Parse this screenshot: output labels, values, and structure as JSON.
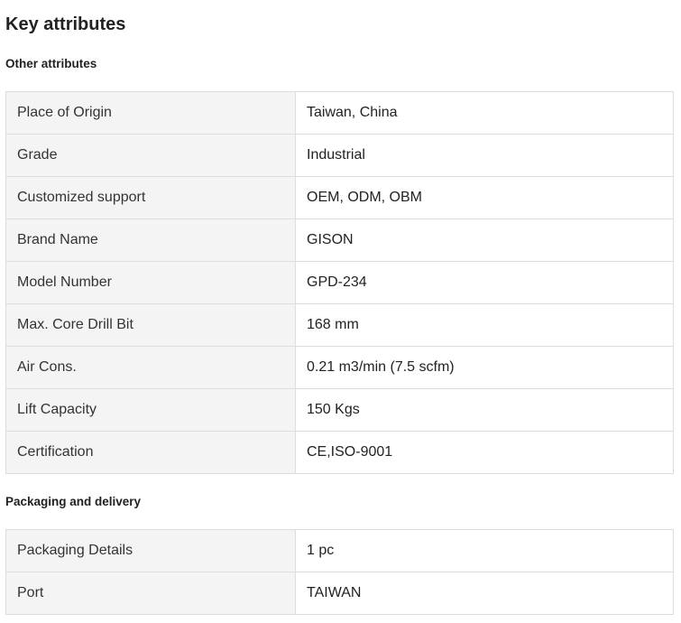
{
  "title": "Key attributes",
  "other_attributes": {
    "heading": "Other attributes",
    "rows": [
      {
        "label": "Place of Origin",
        "value": "Taiwan, China"
      },
      {
        "label": "Grade",
        "value": "Industrial"
      },
      {
        "label": "Customized support",
        "value": "OEM, ODM, OBM"
      },
      {
        "label": "Brand Name",
        "value": "GISON"
      },
      {
        "label": "Model Number",
        "value": "GPD-234"
      },
      {
        "label": "Max. Core Drill Bit",
        "value": "168 mm"
      },
      {
        "label": "Air Cons.",
        "value": "0.21 m3/min (7.5 scfm)"
      },
      {
        "label": "Lift Capacity",
        "value": "150 Kgs"
      },
      {
        "label": "Certification",
        "value": "CE,ISO-9001"
      }
    ]
  },
  "packaging": {
    "heading": "Packaging and delivery",
    "rows": [
      {
        "label": "Packaging Details",
        "value": "1 pc"
      },
      {
        "label": "Port",
        "value": "TAIWAN"
      }
    ]
  }
}
